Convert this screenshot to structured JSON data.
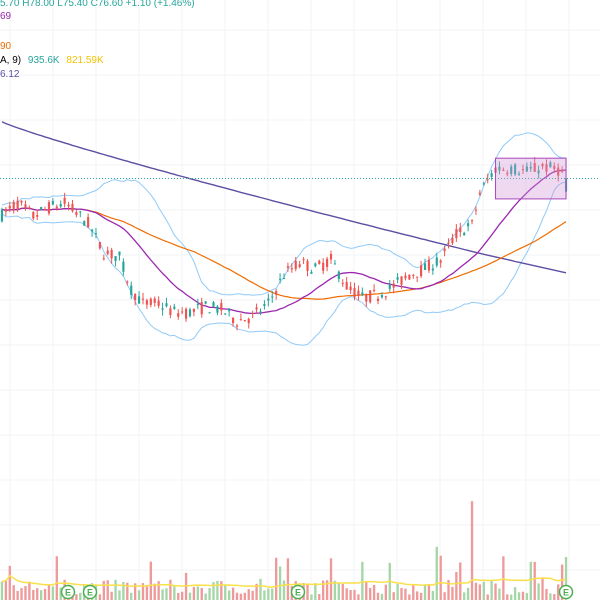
{
  "legend": {
    "ohlc": "5.70  H78.00  L75.40  C76.60  +1.10 (+1.46%)",
    "ma_a": "69",
    "ma_b": "90",
    "volume_prefix": "A, 9)",
    "volume_value": "935.6K",
    "volume_ma": "821.59K",
    "ma_c": "6.12"
  },
  "colors": {
    "up": "#26a69a",
    "down": "#ef5350",
    "vol_up": "#a5d6a7",
    "vol_down": "#ef9a9a",
    "ma_short": "#9c27b0",
    "ma_mid": "#ef6c00",
    "ma_long": "#5e4fa2",
    "bands": "#90caf9",
    "vol_ma": "#f9e04b",
    "highlight": "#ce93d8",
    "price_line": "#26a69a",
    "earnings_badge": "#4caf50"
  },
  "icons": [
    "earnings-badge-icon"
  ],
  "badges": [
    {
      "label": "E"
    },
    {
      "label": "E"
    },
    {
      "label": "E"
    },
    {
      "label": "E"
    }
  ],
  "chart_data": {
    "type": "candlestick",
    "ylim": [
      60,
      82
    ],
    "volume_ylim": [
      0,
      2200
    ],
    "current_price": 76.6,
    "highlight_box": {
      "x_start": 127,
      "x_end": 143,
      "y_low": 75.2,
      "y_high": 78.0
    },
    "candles": [],
    "volume": [],
    "ma_short": [],
    "ma_mid": [],
    "ma_long": [],
    "bb_upper": [],
    "bb_lower": [],
    "volume_ma": []
  }
}
